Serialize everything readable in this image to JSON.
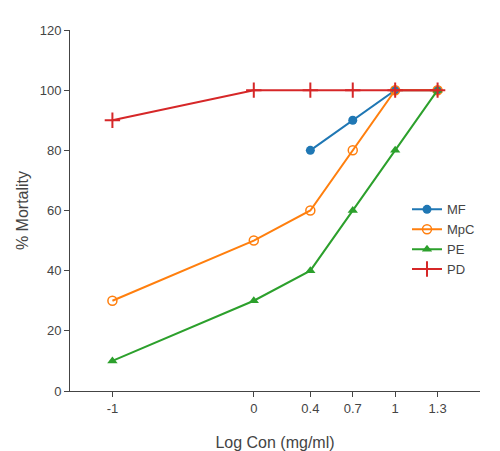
{
  "chart_data": {
    "type": "line",
    "xlabel": "Log Con (mg/ml)",
    "ylabel": "% Mortality",
    "series": [
      {
        "name": "MF",
        "x": [
          0.4,
          0.7,
          1,
          1.3
        ],
        "values": [
          80,
          90,
          100,
          100
        ],
        "marker": "circle"
      },
      {
        "name": "MpC",
        "x": [
          -1,
          0,
          0.4,
          0.7,
          1,
          1.3
        ],
        "values": [
          30,
          50,
          60,
          80,
          100,
          100
        ],
        "marker": "circle-open"
      },
      {
        "name": "PE",
        "x": [
          -1,
          0,
          0.4,
          0.7,
          1,
          1.3
        ],
        "values": [
          10,
          30,
          40,
          60,
          80,
          100
        ],
        "marker": "triangle-up"
      },
      {
        "name": "PD",
        "x": [
          -1,
          0,
          0.4,
          0.7,
          1,
          1.3
        ],
        "values": [
          90,
          100,
          100,
          100,
          100,
          100
        ],
        "marker": "cross-thin-open"
      }
    ],
    "xlim": [
      -1.3,
      1.6
    ],
    "xticks": [
      -1,
      0,
      0.4,
      0.7,
      1,
      1.3
    ],
    "ylim": [
      0,
      120
    ],
    "yticks": [
      0,
      20,
      40,
      60,
      80,
      100,
      120
    ],
    "grid": false,
    "legend": "right"
  }
}
